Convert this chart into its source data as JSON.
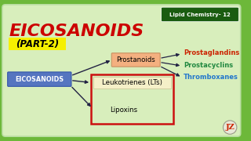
{
  "bg_color": "#6db83a",
  "inner_bg_color": "#d8eebc",
  "title": "EICOSANOIDS",
  "title_color": "#cc0000",
  "subtitle": "(PART-2)",
  "subtitle_bg": "#f5f000",
  "subtitle_color": "#000000",
  "header_label": "Lipid Chemistry- 12",
  "header_bg": "#1a5c10",
  "header_text_color": "#ffffff",
  "eicosanoids_label": "EICOSANOIDS",
  "eicosanoids_bg": "#5575c0",
  "eicosanoids_text_color": "#ffffff",
  "prostanoids_label": "Prostanoids",
  "prostanoids_bg": "#f4b080",
  "prostanoids_border": "#c89060",
  "leukotriene_label": "Leukotrienes (LTs)",
  "leukotriene_bg": "#f5f0c8",
  "leukotriene_border": "#c8c090",
  "lipoxins_label": "Lipoxins",
  "red_box_color": "#cc1010",
  "prostaglandins": "Prostaglandins",
  "prostaglandins_color": "#cc2200",
  "prostacyclins": "Prostacyclins",
  "prostacyclins_color": "#208840",
  "thromboxanes": "Thromboxanes",
  "thromboxanes_color": "#2277cc",
  "arrow_color": "#222244",
  "logo_color": "#cc2200",
  "logo_bg": "#e8e8d8"
}
